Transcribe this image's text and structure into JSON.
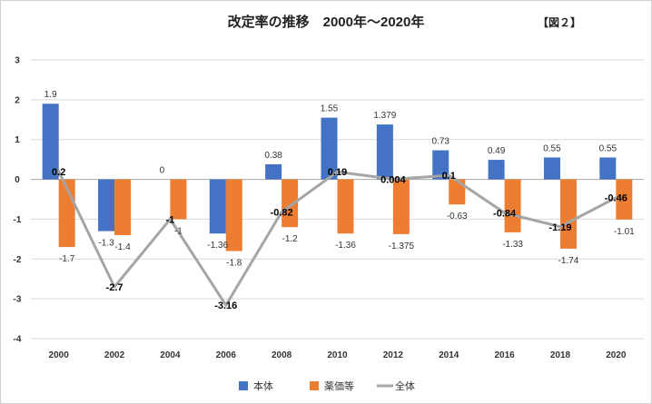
{
  "chart_data": {
    "type": "bar",
    "title": "改定率の推移　2000年～2020年",
    "figure_label": "【図２】",
    "categories": [
      "2000",
      "2002",
      "2004",
      "2006",
      "2008",
      "2010",
      "2012",
      "2014",
      "2016",
      "2018",
      "2020"
    ],
    "ylim": [
      -4,
      3
    ],
    "yticks": [
      3,
      2,
      1,
      0,
      -1,
      -2,
      -3,
      -4
    ],
    "grid": true,
    "legend_position": "bottom",
    "series": [
      {
        "name": "本体",
        "kind": "bar",
        "color": "#4472C4",
        "values": [
          1.9,
          -1.3,
          0,
          -1.36,
          0.38,
          1.55,
          1.379,
          0.73,
          0.49,
          0.55,
          0.55
        ],
        "labels": [
          "1.9",
          "-1.3",
          "0",
          "-1.36",
          "0.38",
          "1.55",
          "1.379",
          "0.73",
          "0.49",
          "0.55",
          "0.55"
        ]
      },
      {
        "name": "薬価等",
        "kind": "bar",
        "color": "#ED7D31",
        "values": [
          -1.7,
          -1.4,
          -1,
          -1.8,
          -1.2,
          -1.36,
          -1.375,
          -0.63,
          -1.33,
          -1.74,
          -1.01
        ],
        "labels": [
          "-1.7",
          "-1.4",
          "-1",
          "-1.8",
          "-1.2",
          "-1.36",
          "-1.375",
          "-0.63",
          "-1.33",
          "-1.74",
          "-1.01"
        ]
      },
      {
        "name": "全体",
        "kind": "line",
        "color": "#A5A5A5",
        "values": [
          0.2,
          -2.7,
          -1,
          -3.16,
          -0.82,
          0.19,
          0.004,
          0.1,
          -0.84,
          -1.19,
          -0.46
        ],
        "labels": [
          "0.2",
          "-2.7",
          "-1",
          "-3.16",
          "-0.82",
          "0.19",
          "0.004",
          "0.1",
          "-0.84",
          "-1.19",
          "-0.46"
        ]
      }
    ]
  }
}
